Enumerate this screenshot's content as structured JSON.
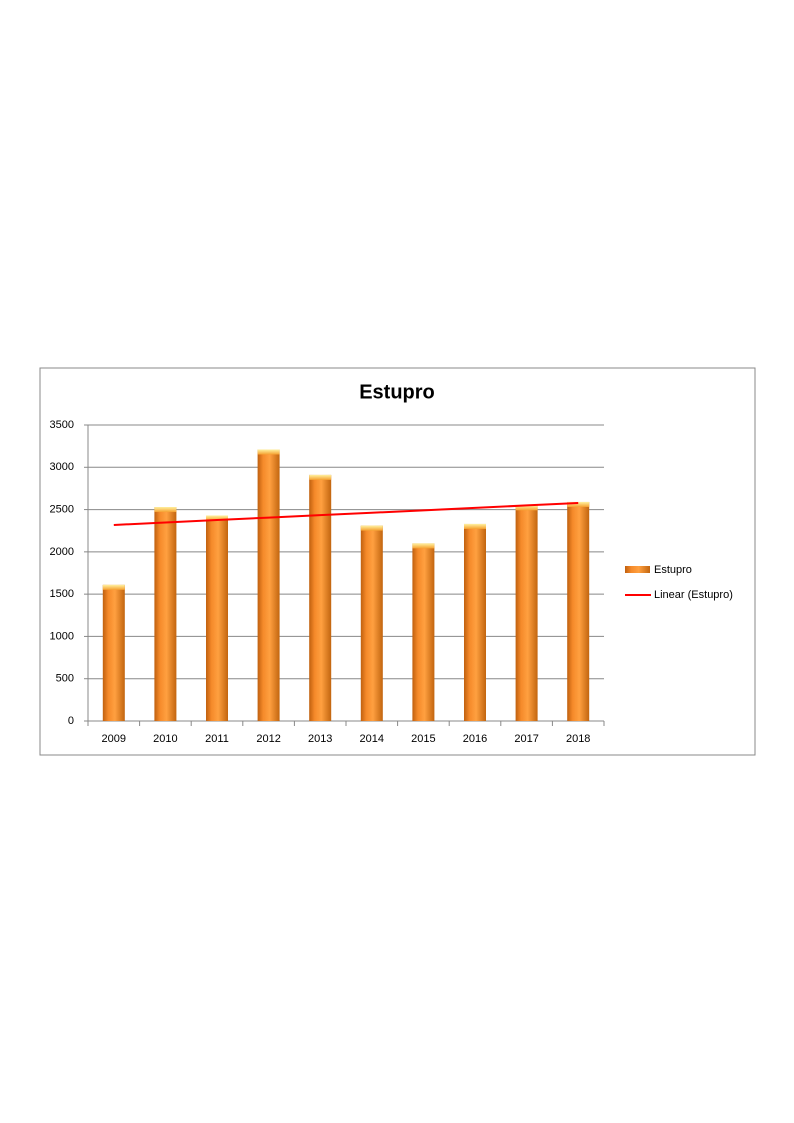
{
  "chart_data": {
    "type": "bar",
    "title": "Estupro",
    "categories": [
      "2009",
      "2010",
      "2011",
      "2012",
      "2013",
      "2014",
      "2015",
      "2016",
      "2017",
      "2018"
    ],
    "series": [
      {
        "name": "Estupro",
        "color": "#f7941d",
        "values": [
          1610,
          2530,
          2430,
          3210,
          2910,
          2310,
          2100,
          2330,
          2550,
          2590
        ]
      },
      {
        "name": "Linear (Estupro)",
        "type": "line",
        "color": "#ff0000",
        "values": [
          2318,
          2347,
          2376,
          2405,
          2434,
          2462,
          2491,
          2520,
          2549,
          2578
        ]
      }
    ],
    "ylim": [
      0,
      3500
    ],
    "yticks": [
      0,
      500,
      1000,
      1500,
      2000,
      2500,
      3000,
      3500
    ],
    "grid": true,
    "legend": "right"
  }
}
